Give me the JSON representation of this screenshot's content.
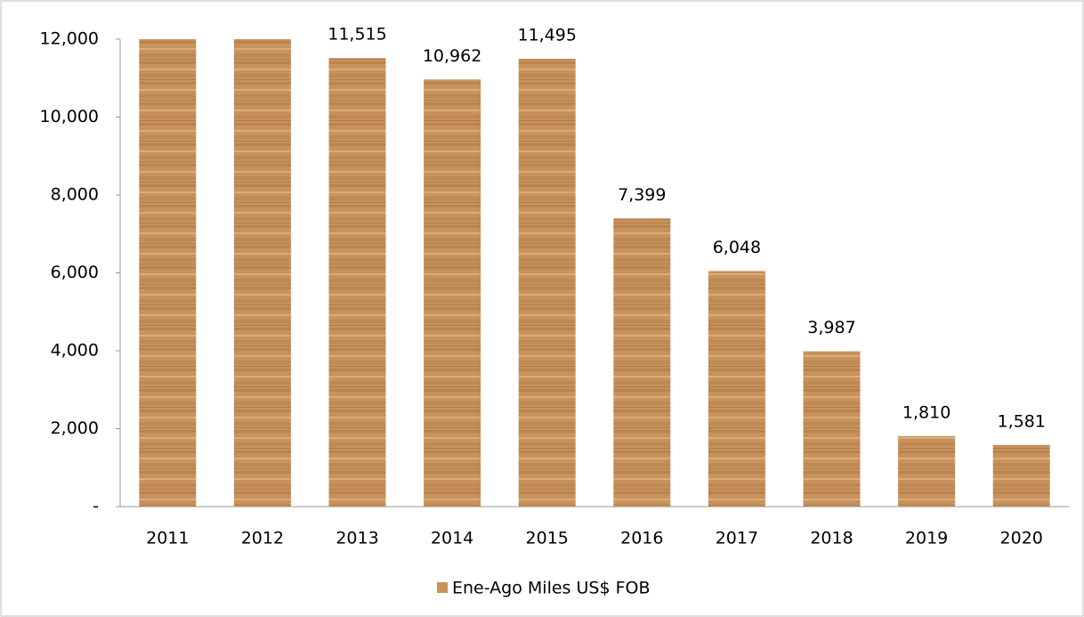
{
  "chart_data": {
    "type": "bar",
    "categories": [
      "2011",
      "2012",
      "2013",
      "2014",
      "2015",
      "2016",
      "2017",
      "2018",
      "2019",
      "2020"
    ],
    "series": [
      {
        "name": "Ene-Ago Miles US$ FOB",
        "color": "#c8925c",
        "values": [
          12000,
          12000,
          11515,
          10962,
          11495,
          7399,
          6048,
          3987,
          1810,
          1581
        ],
        "value_labels": [
          null,
          null,
          "11,515",
          "10,962",
          "11,495",
          "7,399",
          "6,048",
          "3,987",
          "1,810",
          "1,581"
        ]
      }
    ],
    "ylim": [
      0,
      12000
    ],
    "yticks": [
      {
        "value": 0,
        "label": "-"
      },
      {
        "value": 2000,
        "label": "2,000"
      },
      {
        "value": 4000,
        "label": "4,000"
      },
      {
        "value": 6000,
        "label": "6,000"
      },
      {
        "value": 8000,
        "label": "8,000"
      },
      {
        "value": 10000,
        "label": "10,000"
      },
      {
        "value": 12000,
        "label": "12,000"
      }
    ],
    "grid": false,
    "legend": "bottom"
  }
}
